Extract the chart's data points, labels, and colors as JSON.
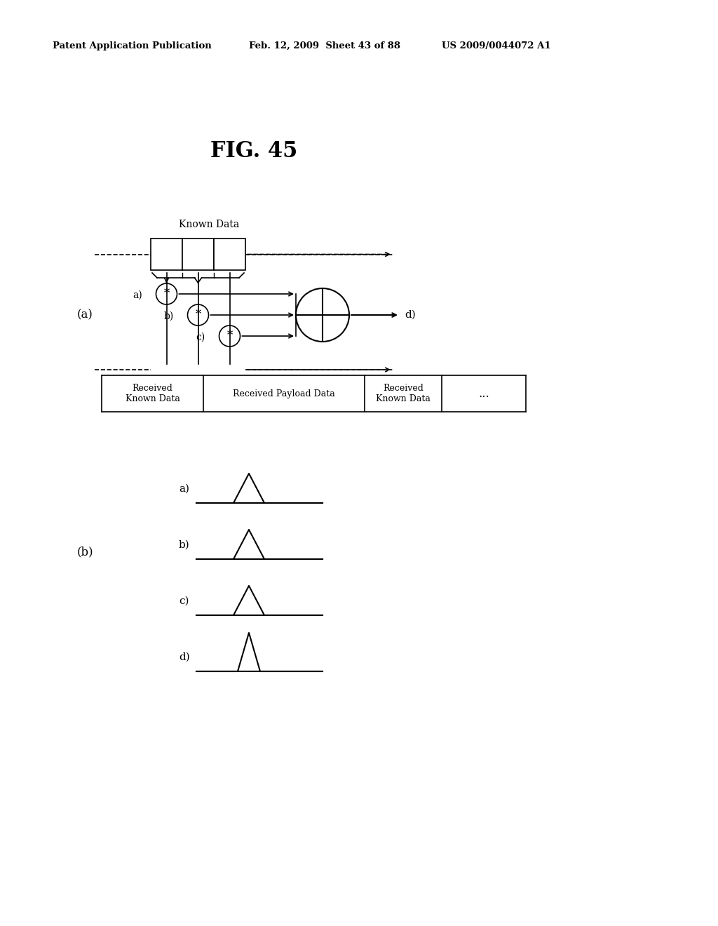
{
  "title": "FIG. 45",
  "header_left": "Patent Application Publication",
  "header_mid": "Feb. 12, 2009  Sheet 43 of 88",
  "header_right": "US 2009/0044072 A1",
  "bg_color": "#ffffff",
  "label_a": "(a)",
  "label_b": "(b)",
  "known_data_label": "Known Data",
  "received_known_data": "Received\nKnown Data",
  "received_payload": "Received Payload Data",
  "received_known_data2": "Received\nKnown Data",
  "dots": "...",
  "signal_labels": [
    "a)",
    "b)",
    "c)",
    "d)"
  ],
  "d_label": "d)"
}
